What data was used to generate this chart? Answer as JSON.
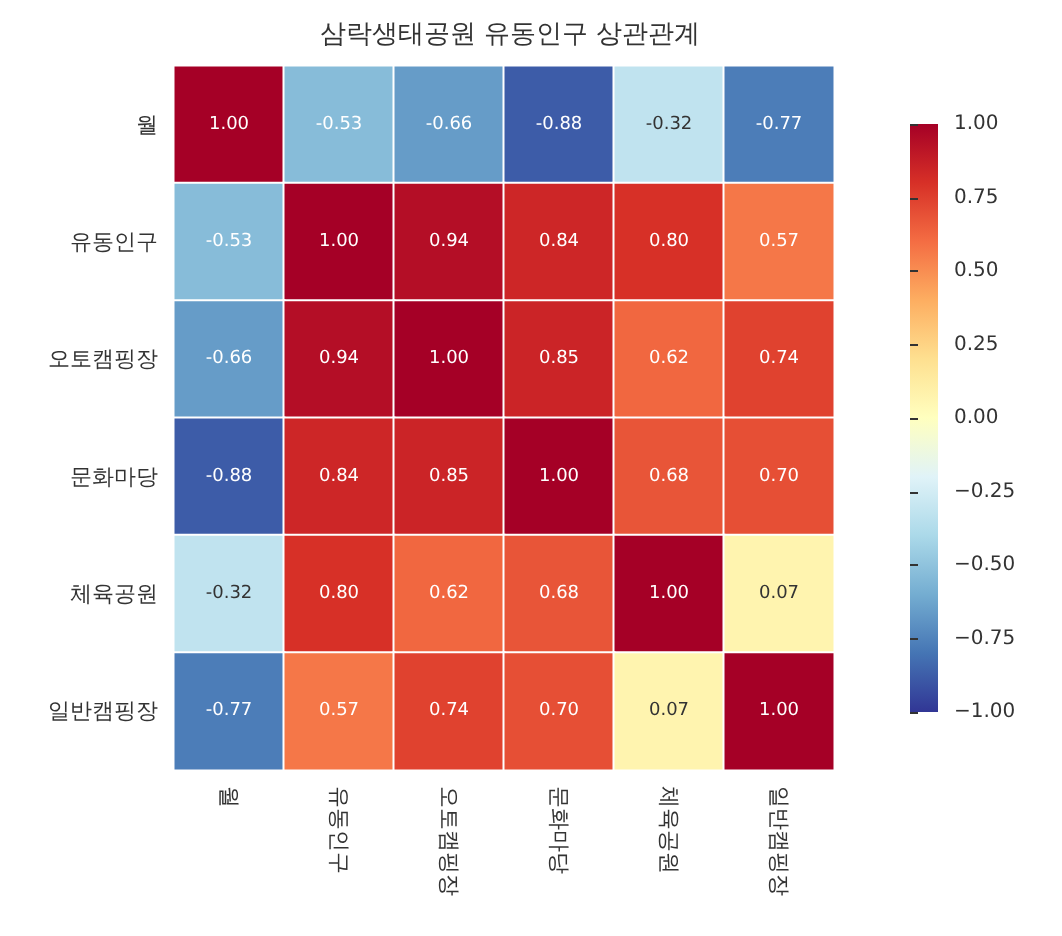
{
  "chart_data": {
    "type": "heatmap",
    "title": "삼락생태공원 유동인구 상관관계",
    "categories": [
      "월",
      "유동인구",
      "오토캠핑장",
      "문화마당",
      "체육공원",
      "일반캠핑장"
    ],
    "y_categories": [
      "월",
      "유동인구",
      "오토캠핑장",
      "문화마당",
      "체육공원",
      "일반캠핑장"
    ],
    "cells": [
      [
        1.0,
        -0.53,
        -0.66,
        -0.88,
        -0.32,
        -0.77
      ],
      [
        -0.53,
        1.0,
        0.94,
        0.84,
        0.8,
        0.57
      ],
      [
        -0.66,
        0.94,
        1.0,
        0.85,
        0.62,
        0.74
      ],
      [
        -0.88,
        0.84,
        0.85,
        1.0,
        0.68,
        0.7
      ],
      [
        -0.32,
        0.8,
        0.62,
        0.68,
        1.0,
        0.07
      ],
      [
        -0.77,
        0.57,
        0.74,
        0.7,
        0.07,
        1.0
      ]
    ],
    "cell_labels": [
      [
        "1.00",
        "-0.53",
        "-0.66",
        "-0.88",
        "-0.32",
        "-0.77"
      ],
      [
        "-0.53",
        "1.00",
        "0.94",
        "0.84",
        "0.80",
        "0.57"
      ],
      [
        "-0.66",
        "0.94",
        "1.00",
        "0.85",
        "0.62",
        "0.74"
      ],
      [
        "-0.88",
        "0.84",
        "0.85",
        "1.00",
        "0.68",
        "0.70"
      ],
      [
        "-0.32",
        "0.80",
        "0.62",
        "0.68",
        "1.00",
        "0.07"
      ],
      [
        "-0.77",
        "0.57",
        "0.74",
        "0.70",
        "0.07",
        "1.00"
      ]
    ],
    "clim": [
      -1,
      1
    ],
    "cticks": [
      {
        "value": -1,
        "label": "−1.00"
      },
      {
        "value": -0.75,
        "label": "−0.75"
      },
      {
        "value": -0.5,
        "label": "−0.50"
      },
      {
        "value": -0.25,
        "label": "−0.25"
      },
      {
        "value": 0,
        "label": "0.00"
      },
      {
        "value": 0.25,
        "label": "0.25"
      },
      {
        "value": 0.5,
        "label": "0.50"
      },
      {
        "value": 0.75,
        "label": "0.75"
      },
      {
        "value": 1,
        "label": "1.00"
      }
    ]
  }
}
